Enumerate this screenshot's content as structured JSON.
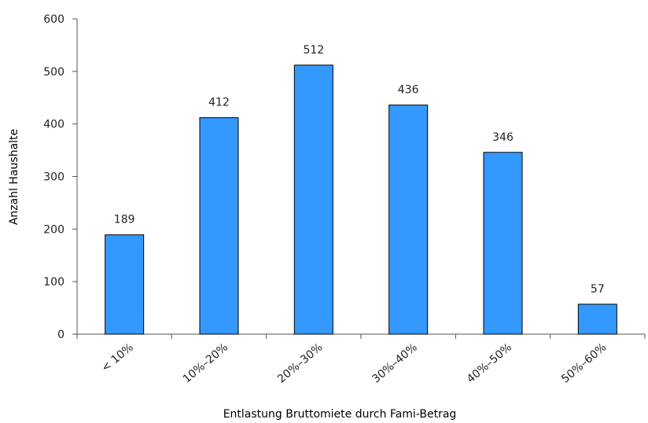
{
  "chart_data": {
    "type": "bar",
    "title": "",
    "xlabel": "Entlastung Bruttomiete durch Fami-Betrag",
    "ylabel": "Anzahl Haushalte",
    "categories": [
      "< 10%",
      "10%–20%",
      "20%–30%",
      "30%–40%",
      "40%–50%",
      "50%–60%"
    ],
    "values": [
      189,
      412,
      512,
      436,
      346,
      57
    ],
    "ylim": [
      0,
      600
    ],
    "yticks": [
      0,
      100,
      200,
      300,
      400,
      500,
      600
    ],
    "data_labels": true,
    "grid": false,
    "bar_color": "#3399ff"
  }
}
